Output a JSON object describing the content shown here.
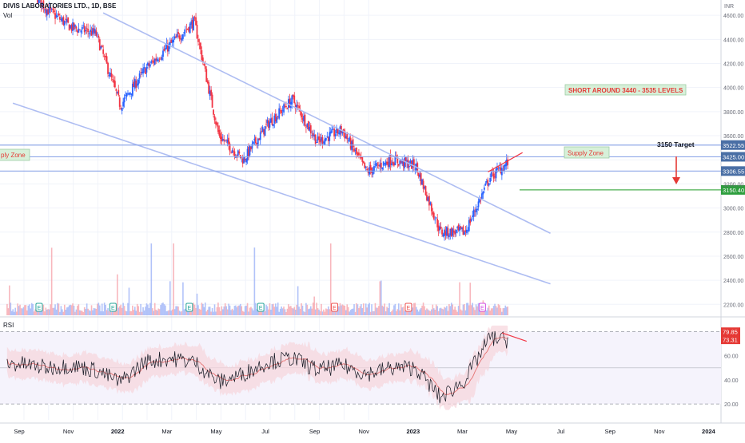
{
  "header": {
    "symbol_title": "DIVIS LABORATORIES LTD., 1D, BSE",
    "volume_label": "Vol"
  },
  "currency_label": "INR",
  "price_axis_ticks": [
    2200,
    2400,
    2600,
    2800,
    3000,
    3200,
    3400,
    3600,
    3800,
    4000,
    4200,
    4400,
    4600
  ],
  "rsi_axis_ticks": [
    "80.00",
    "60.00",
    "40.00",
    "20.00"
  ],
  "time_axis": [
    {
      "label": "Sep",
      "bold": false
    },
    {
      "label": "Nov",
      "bold": false
    },
    {
      "label": "2022",
      "bold": true
    },
    {
      "label": "Mar",
      "bold": false
    },
    {
      "label": "May",
      "bold": false
    },
    {
      "label": "Jul",
      "bold": false
    },
    {
      "label": "Sep",
      "bold": false
    },
    {
      "label": "Nov",
      "bold": false
    },
    {
      "label": "2023",
      "bold": true
    },
    {
      "label": "Mar",
      "bold": false
    },
    {
      "label": "May",
      "bold": false
    },
    {
      "label": "Jul",
      "bold": false
    },
    {
      "label": "Sep",
      "bold": false
    },
    {
      "label": "Nov",
      "bold": false
    },
    {
      "label": "2024",
      "bold": true
    }
  ],
  "annotations": {
    "short_note": "SHORT AROUND  3440 - 3535 LEVELS",
    "supply_zone_left": "ply Zone",
    "supply_zone_right": "Supply Zone",
    "target_note": "3150 Target"
  },
  "price_levels": [
    {
      "label": "3522.55",
      "value": 3522.55,
      "color": "#4a6fa5"
    },
    {
      "label": "3425.00",
      "value": 3425.0,
      "color": "#4a6fa5"
    },
    {
      "label": "3306.55",
      "value": 3306.55,
      "color": "#4a6fa5"
    },
    {
      "label": "3150.40",
      "value": 3150.4,
      "color": "#2e9e3e"
    }
  ],
  "rsi_badges": [
    {
      "label": "79.85",
      "value": 79.85,
      "color": "#e53935"
    },
    {
      "label": "73.31",
      "value": 73.31,
      "color": "#e53935"
    }
  ],
  "earnings_marker_letter": "E",
  "earnings_markers": [
    {
      "month_index": 1.2,
      "color": "#26a69a"
    },
    {
      "month_index": 4.2,
      "color": "#26a69a"
    },
    {
      "month_index": 7.3,
      "color": "#26a69a"
    },
    {
      "month_index": 10.2,
      "color": "#26a69a"
    },
    {
      "month_index": 13.2,
      "color": "#ef5350"
    },
    {
      "month_index": 16.2,
      "color": "#ef5350"
    },
    {
      "month_index": 19.2,
      "color": "#d14be0"
    }
  ],
  "rsi_label": "RSI",
  "colors": {
    "up": "#2962ff",
    "down": "#f23645",
    "trendline": "#aebdf2",
    "rsi_band": "#f6d4dc",
    "target_arrow": "#e53935"
  },
  "chart_data": [
    {
      "type": "candlestick",
      "timeframe": "1D",
      "y_axis_label": "INR",
      "ylim": [
        2100,
        4660
      ],
      "x_range": [
        "2021-08",
        "2024-01"
      ],
      "price_path_monthly": [
        {
          "month": "2021-09",
          "close": 4900
        },
        {
          "month": "2021-10",
          "close": 4650
        },
        {
          "month": "2021-11",
          "close": 4500
        },
        {
          "month": "2021-12",
          "close": 4450
        },
        {
          "month": "2022-01",
          "close": 3850
        },
        {
          "month": "2022-02",
          "close": 4150
        },
        {
          "month": "2022-03",
          "close": 4350
        },
        {
          "month": "2022-04",
          "close": 4550
        },
        {
          "month": "2022-05",
          "close": 3600
        },
        {
          "month": "2022-06",
          "close": 3400
        },
        {
          "month": "2022-07",
          "close": 3700
        },
        {
          "month": "2022-08",
          "close": 3900
        },
        {
          "month": "2022-09",
          "close": 3550
        },
        {
          "month": "2022-10",
          "close": 3650
        },
        {
          "month": "2022-11",
          "close": 3300
        },
        {
          "month": "2022-12",
          "close": 3400
        },
        {
          "month": "2023-01",
          "close": 3350
        },
        {
          "month": "2023-02",
          "close": 2800
        },
        {
          "month": "2023-03",
          "close": 2800
        },
        {
          "month": "2023-04",
          "close": 3250
        },
        {
          "month": "2023-05",
          "close": 3425
        }
      ],
      "horizontal_levels": [
        3522.55,
        3425.0,
        3306.55,
        3150.4
      ],
      "trendlines": [
        {
          "name": "falling channel upper",
          "from": [
            "2021-12-25",
            4620
          ],
          "to": [
            "2023-06-30",
            2790
          ]
        },
        {
          "name": "falling channel lower",
          "from": [
            "2021-09-05",
            3870
          ],
          "to": [
            "2023-06-30",
            2370
          ]
        }
      ],
      "projection": {
        "target": 3150
      }
    },
    {
      "type": "line",
      "name": "RSI",
      "ylim": [
        15,
        85
      ],
      "levels": [
        80,
        60,
        40,
        20
      ],
      "rsi_monthly": [
        {
          "month": "2021-09",
          "value": 53
        },
        {
          "month": "2021-10",
          "value": 50
        },
        {
          "month": "2021-11",
          "value": 52
        },
        {
          "month": "2021-12",
          "value": 48
        },
        {
          "month": "2022-01",
          "value": 38
        },
        {
          "month": "2022-02",
          "value": 55
        },
        {
          "month": "2022-03",
          "value": 58
        },
        {
          "month": "2022-04",
          "value": 55
        },
        {
          "month": "2022-05",
          "value": 38
        },
        {
          "month": "2022-06",
          "value": 45
        },
        {
          "month": "2022-07",
          "value": 55
        },
        {
          "month": "2022-08",
          "value": 58
        },
        {
          "month": "2022-09",
          "value": 48
        },
        {
          "month": "2022-10",
          "value": 52
        },
        {
          "month": "2022-11",
          "value": 45
        },
        {
          "month": "2022-12",
          "value": 50
        },
        {
          "month": "2023-01",
          "value": 50
        },
        {
          "month": "2023-02",
          "value": 25
        },
        {
          "month": "2023-03",
          "value": 40
        },
        {
          "month": "2023-04",
          "value": 75
        },
        {
          "month": "2023-05",
          "value": 72
        }
      ]
    }
  ]
}
